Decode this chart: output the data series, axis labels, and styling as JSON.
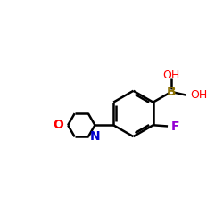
{
  "bg_color": "#ffffff",
  "bond_color": "#000000",
  "O_color": "#ff0000",
  "N_color": "#0000cc",
  "F_color": "#9400d3",
  "B_color": "#8B7000",
  "line_width": 1.8,
  "font_size": 10,
  "fig_width": 2.5,
  "fig_height": 2.5,
  "dpi": 100,
  "xlim": [
    0,
    10
  ],
  "ylim": [
    0,
    10
  ]
}
